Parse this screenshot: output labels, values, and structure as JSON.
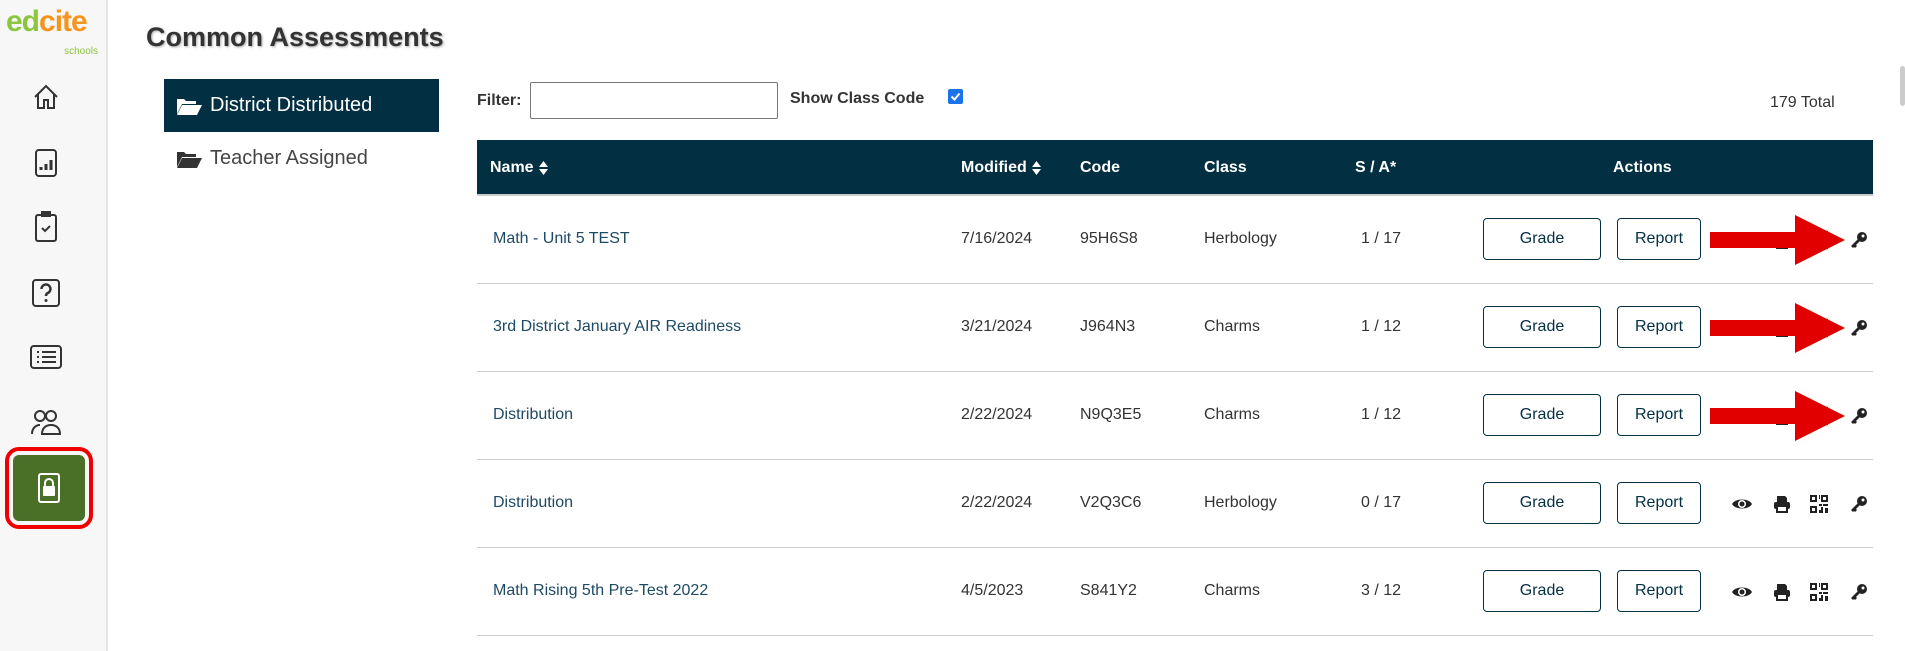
{
  "logo": {
    "brand": "edcite",
    "sub": "schools"
  },
  "sidebar": {
    "items": [
      {
        "icon": "home-icon"
      },
      {
        "icon": "reports-icon"
      },
      {
        "icon": "assignments-icon"
      },
      {
        "icon": "questions-icon"
      },
      {
        "icon": "list-icon"
      },
      {
        "icon": "users-icon"
      },
      {
        "icon": "lock-icon",
        "active": true
      }
    ]
  },
  "page": {
    "title": "Common Assessments"
  },
  "folders": [
    {
      "label": "District Distributed",
      "active": true
    },
    {
      "label": "Teacher Assigned"
    }
  ],
  "filter": {
    "label": "Filter:",
    "value": "",
    "show_class_code_label": "Show Class Code",
    "show_class_code": true,
    "total": "179 Total"
  },
  "table": {
    "headers": {
      "name": "Name",
      "modified": "Modified",
      "code": "Code",
      "class": "Class",
      "sa": "S / A*",
      "actions": "Actions"
    },
    "grade_label": "Grade",
    "report_label": "Report",
    "rows": [
      {
        "name": "Math - Unit 5 TEST",
        "modified": "7/16/2024",
        "code": "95H6S8",
        "class": "Herbology",
        "sa": "1 / 17",
        "arrow": true
      },
      {
        "name": "3rd District January AIR Readiness",
        "modified": "3/21/2024",
        "code": "J964N3",
        "class": "Charms",
        "sa": "1 / 12",
        "arrow": true
      },
      {
        "name": "Distribution",
        "modified": "2/22/2024",
        "code": "N9Q3E5",
        "class": "Charms",
        "sa": "1 / 12",
        "arrow": true
      },
      {
        "name": "Distribution",
        "modified": "2/22/2024",
        "code": "V2Q3C6",
        "class": "Herbology",
        "sa": "0 / 17",
        "arrow": false
      },
      {
        "name": "Math Rising 5th Pre-Test 2022",
        "modified": "4/5/2023",
        "code": "S841Y2",
        "class": "Charms",
        "sa": "3 / 12",
        "arrow": false
      }
    ]
  },
  "colors": {
    "header": "#022f42",
    "active_nav": "#4a7028",
    "annotation": "#e00000"
  }
}
